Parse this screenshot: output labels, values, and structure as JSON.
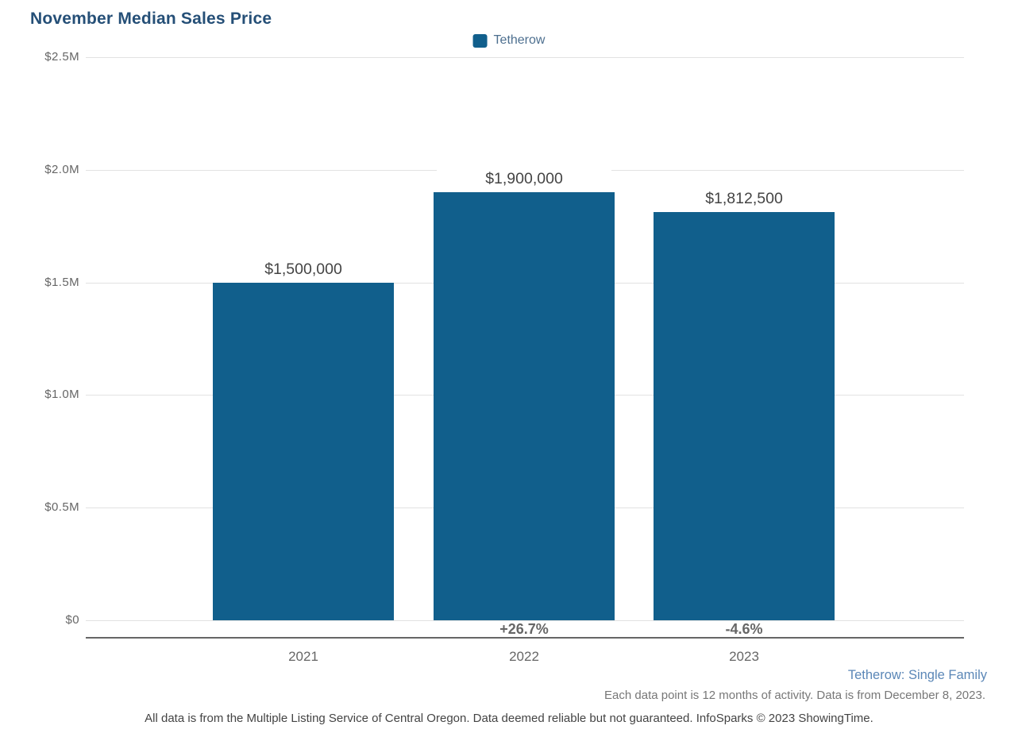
{
  "title": "November Median Sales Price",
  "legend": {
    "label": "Tetherow",
    "swatch_color": "#115f8c"
  },
  "chart_data": {
    "type": "bar",
    "title": "November Median Sales Price",
    "xlabel": "",
    "ylabel": "",
    "categories": [
      "2021",
      "2022",
      "2023"
    ],
    "series": [
      {
        "name": "Tetherow",
        "values": [
          1500000,
          1900000,
          1812500
        ],
        "value_labels": [
          "$1,500,000",
          "$1,900,000",
          "$1,812,500"
        ],
        "color": "#115f8c"
      }
    ],
    "pct_change_labels": [
      "",
      "+26.7%",
      "-4.6%"
    ],
    "ylim": [
      0,
      2500000
    ],
    "ytick_values_top_down": [
      2500000,
      2000000,
      1500000,
      1000000,
      500000,
      0
    ],
    "ytick_labels_top_down": [
      "$2.5M",
      "$2.0M",
      "$1.5M",
      "$1.0M",
      "$0.5M",
      "$0"
    ],
    "grid": true,
    "legend_position": "top-center"
  },
  "footer": {
    "series_note": "Tetherow: Single Family",
    "data_note": "Each data point is 12 months of activity. Data is from December 8, 2023.",
    "disclaimer": "All data is from the Multiple Listing Service of Central Oregon. Data deemed reliable but not guaranteed. InfoSparks © 2023 ShowingTime."
  },
  "colors": {
    "title": "#254f77",
    "bar": "#115f8c",
    "legend_text": "#4d6f8f",
    "gridline": "#e2e2e2",
    "axis_line": "#666666",
    "tick_text": "#666666",
    "value_label_text": "#444444",
    "pct_text": "#666666",
    "series_note_text": "#5b87b7",
    "data_note_text": "#777777",
    "disclaimer_text": "#444444"
  }
}
